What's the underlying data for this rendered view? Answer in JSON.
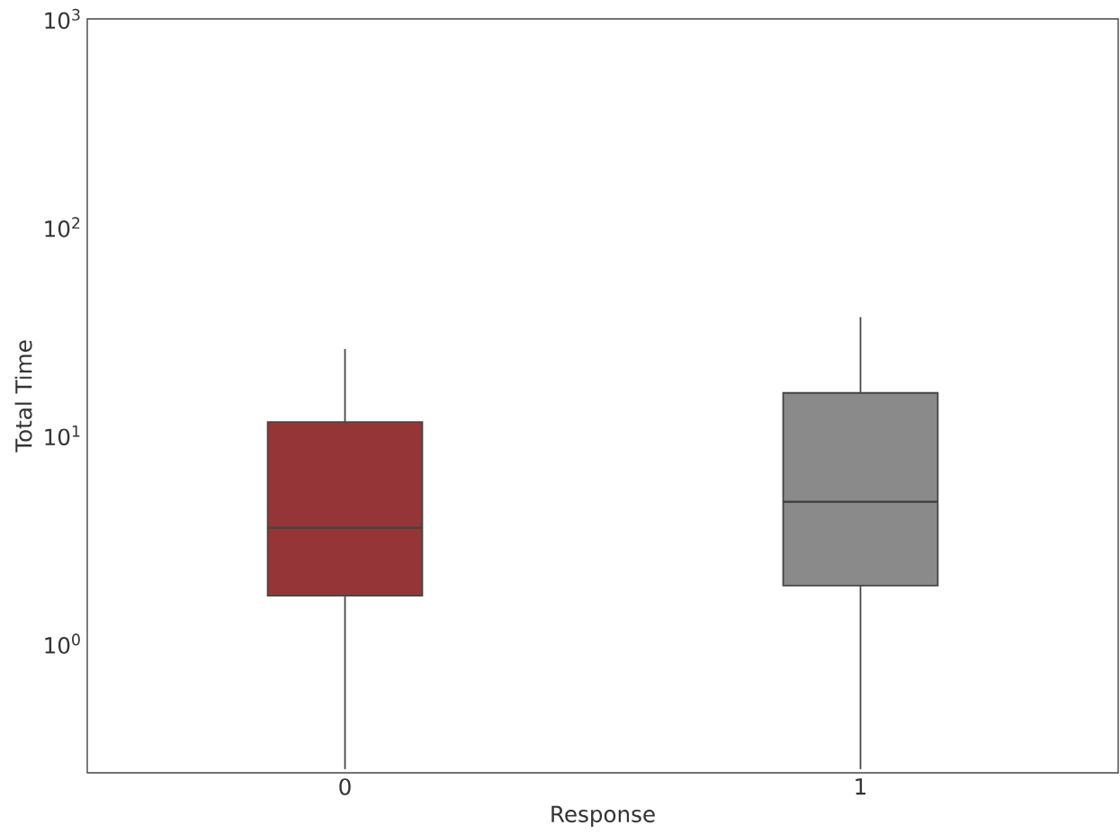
{
  "chart_data": {
    "type": "box",
    "xlabel": "Response",
    "ylabel": "Total Time",
    "categories": [
      "0",
      "1"
    ],
    "colors": [
      "#963538",
      "#8a8a8a"
    ],
    "boxes": [
      {
        "low": 0.25,
        "q1": 1.7,
        "median": 3.6,
        "q3": 11.6,
        "high": 26
      },
      {
        "low": 0.25,
        "q1": 1.9,
        "median": 4.8,
        "q3": 16,
        "high": 37
      }
    ],
    "log": "y",
    "grid": false,
    "ylim": [
      0.24,
      1000
    ],
    "yticks": [
      {
        "value": 1,
        "label": "10$^{0}$"
      },
      {
        "value": 10,
        "label": "10$^{1}$"
      },
      {
        "value": 100,
        "label": "10$^{2}$"
      },
      {
        "value": 1000,
        "label": "10$^{3}$"
      }
    ]
  }
}
